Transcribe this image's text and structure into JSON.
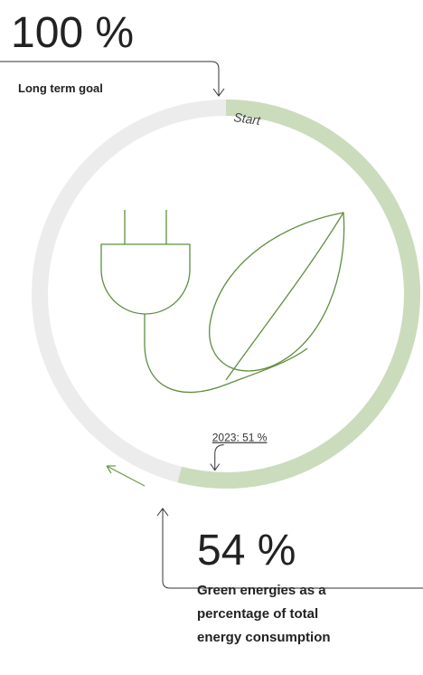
{
  "chart_data": {
    "type": "progress-ring",
    "goal": 100,
    "goal_label": "100 %",
    "goal_caption": "Long term goal",
    "start_label": "Start",
    "value": 54,
    "value_label": "54 %",
    "caption": "Green energies as a percentage of total energy consumption",
    "previous": 51,
    "previous_label": "2023: 51 %",
    "color": "#cbdcbd",
    "track_color": "#ececec"
  }
}
